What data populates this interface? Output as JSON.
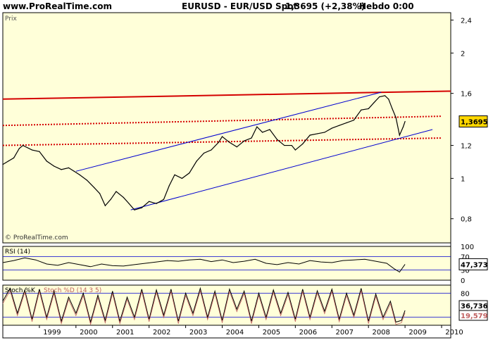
{
  "header": {
    "site": "www.ProRealTime.com",
    "instrument": "EURUSD - EUR/USD Spot",
    "quote": "1,3695 (+2,38%)",
    "timeframe": "Hebdo 0:00"
  },
  "colors": {
    "panel_bg": "#ffffd9",
    "price_line": "#000000",
    "horizontal_resistance": "#d40000",
    "channel": "#0000d0",
    "price_tag": "#ffd700",
    "stoch_d": "#c06060"
  },
  "chart_data": [
    {
      "type": "line",
      "panel": "price",
      "title": "",
      "xlabel": "",
      "ylabel": "",
      "panel_label": "Prix",
      "watermark": "© ProRealTime.com",
      "last_value_tag": "1,3695",
      "x_ticks": [
        "1999",
        "2000",
        "2001",
        "2002",
        "2003",
        "2004",
        "2005",
        "2006",
        "2007",
        "2008",
        "2009",
        "2010"
      ],
      "y_ticks": [
        "0,8",
        "1",
        "1,2",
        "1,6",
        "2",
        "2,4"
      ],
      "y_tick_values": [
        0.8,
        1.0,
        1.2,
        1.6,
        2.0,
        2.4
      ],
      "scale": "log",
      "ylim": [
        0.7,
        2.5
      ],
      "xlim": [
        1998.0,
        2010.25
      ],
      "grid": false,
      "series": [
        {
          "x": [
            1998.0,
            1998.15,
            1998.3,
            1998.45,
            1998.55,
            1998.8,
            1999.0,
            1999.2,
            1999.4,
            1999.6,
            1999.8,
            1999.95,
            2000.1,
            2000.3,
            2000.5,
            2000.65,
            2000.8,
            2000.95,
            2001.1,
            2001.3,
            2001.45,
            2001.6,
            2001.8,
            2002.0,
            2002.2,
            2002.4,
            2002.55,
            2002.7,
            2002.9,
            2003.1,
            2003.3,
            2003.5,
            2003.7,
            2003.9,
            2004.0,
            2004.2,
            2004.4,
            2004.6,
            2004.8,
            2004.95,
            2005.1,
            2005.3,
            2005.5,
            2005.7,
            2005.9,
            2006.0,
            2006.2,
            2006.4,
            2006.6,
            2006.8,
            2007.0,
            2007.2,
            2007.4,
            2007.6,
            2007.8,
            2008.0,
            2008.15,
            2008.3,
            2008.45,
            2008.55,
            2008.65,
            2008.75,
            2008.85,
            2008.95,
            2009.0
          ],
          "y": [
            1.08,
            1.1,
            1.12,
            1.18,
            1.2,
            1.17,
            1.16,
            1.1,
            1.07,
            1.05,
            1.06,
            1.04,
            1.02,
            0.99,
            0.95,
            0.92,
            0.86,
            0.89,
            0.93,
            0.9,
            0.87,
            0.84,
            0.85,
            0.88,
            0.87,
            0.89,
            0.96,
            1.02,
            1.0,
            1.03,
            1.1,
            1.15,
            1.17,
            1.22,
            1.26,
            1.22,
            1.19,
            1.23,
            1.25,
            1.33,
            1.29,
            1.31,
            1.24,
            1.2,
            1.2,
            1.17,
            1.21,
            1.27,
            1.28,
            1.29,
            1.32,
            1.34,
            1.36,
            1.38,
            1.46,
            1.47,
            1.52,
            1.57,
            1.58,
            1.55,
            1.47,
            1.4,
            1.27,
            1.33,
            1.37
          ]
        }
      ],
      "overlays": [
        {
          "name": "",
          "kind": "horizontal",
          "style": "solid",
          "x": [
            1998.0,
            2010.25
          ],
          "y": [
            1.55,
            1.62
          ]
        },
        {
          "name": "",
          "kind": "horizontal",
          "style": "dotted",
          "x": [
            1998.0,
            2010.0
          ],
          "y": [
            1.34,
            1.41
          ]
        },
        {
          "name": "",
          "kind": "horizontal",
          "style": "dotted",
          "x": [
            1998.0,
            2010.0
          ],
          "y": [
            1.2,
            1.25
          ]
        },
        {
          "name": "",
          "kind": "channel",
          "style": "solid",
          "x": [
            2000.0,
            2008.35
          ],
          "y": [
            1.04,
            1.61
          ]
        },
        {
          "name": "",
          "kind": "channel",
          "style": "solid",
          "x": [
            2001.5,
            2009.75
          ],
          "y": [
            0.84,
            1.31
          ]
        }
      ]
    },
    {
      "type": "line",
      "panel": "rsi",
      "title": "RSI (14)",
      "xlabel": "",
      "ylabel": "",
      "ylim": [
        0,
        100
      ],
      "y_ticks": [
        "100",
        "70",
        "30",
        "0"
      ],
      "y_tick_values": [
        100,
        70,
        30,
        0
      ],
      "last_value_tag": "47,373",
      "series": [
        {
          "x": [
            1998.0,
            1998.3,
            1998.6,
            1998.9,
            1999.2,
            1999.5,
            1999.8,
            2000.1,
            2000.4,
            2000.7,
            2001.0,
            2001.3,
            2001.6,
            2001.9,
            2002.2,
            2002.5,
            2002.8,
            2003.1,
            2003.4,
            2003.7,
            2004.0,
            2004.3,
            2004.6,
            2004.9,
            2005.2,
            2005.5,
            2005.8,
            2006.1,
            2006.4,
            2006.7,
            2007.0,
            2007.3,
            2007.6,
            2007.9,
            2008.2,
            2008.5,
            2008.7,
            2008.85,
            2009.0
          ],
          "y": [
            52,
            58,
            66,
            60,
            48,
            44,
            52,
            46,
            40,
            48,
            43,
            42,
            46,
            50,
            54,
            58,
            56,
            60,
            62,
            55,
            60,
            52,
            56,
            62,
            50,
            46,
            52,
            48,
            58,
            54,
            52,
            58,
            60,
            62,
            56,
            50,
            34,
            24,
            47
          ]
        }
      ]
    },
    {
      "type": "line",
      "panel": "stochastic",
      "title": "Stoch %K",
      "subtitle": "Stoch %D (14 3 5)",
      "xlabel": "",
      "ylabel": "",
      "ylim": [
        0,
        100
      ],
      "y_ticks": [
        "80",
        "20"
      ],
      "y_tick_values": [
        80,
        20
      ],
      "last_value_tags": [
        "36,736",
        "19,579"
      ],
      "series": [
        {
          "x": [
            1998.0,
            1998.2,
            1998.4,
            1998.6,
            1998.8,
            1999.0,
            1999.2,
            1999.4,
            1999.6,
            1999.8,
            2000.0,
            2000.2,
            2000.4,
            2000.6,
            2000.8,
            2001.0,
            2001.2,
            2001.4,
            2001.6,
            2001.8,
            2002.0,
            2002.2,
            2002.4,
            2002.6,
            2002.8,
            2003.0,
            2003.2,
            2003.4,
            2003.6,
            2003.8,
            2004.0,
            2004.2,
            2004.4,
            2004.6,
            2004.8,
            2005.0,
            2005.2,
            2005.4,
            2005.6,
            2005.8,
            2006.0,
            2006.2,
            2006.4,
            2006.6,
            2006.8,
            2007.0,
            2007.2,
            2007.4,
            2007.6,
            2007.8,
            2008.0,
            2008.2,
            2008.4,
            2008.6,
            2008.75,
            2008.9,
            2009.0
          ],
          "y": [
            60,
            92,
            30,
            88,
            15,
            90,
            20,
            85,
            10,
            70,
            30,
            80,
            8,
            75,
            12,
            85,
            10,
            70,
            20,
            90,
            15,
            88,
            25,
            90,
            10,
            80,
            30,
            92,
            20,
            85,
            12,
            90,
            40,
            85,
            10,
            80,
            20,
            88,
            30,
            82,
            15,
            90,
            20,
            86,
            35,
            90,
            15,
            80,
            25,
            92,
            10,
            78,
            20,
            60,
            8,
            12,
            37
          ]
        }
      ]
    }
  ]
}
